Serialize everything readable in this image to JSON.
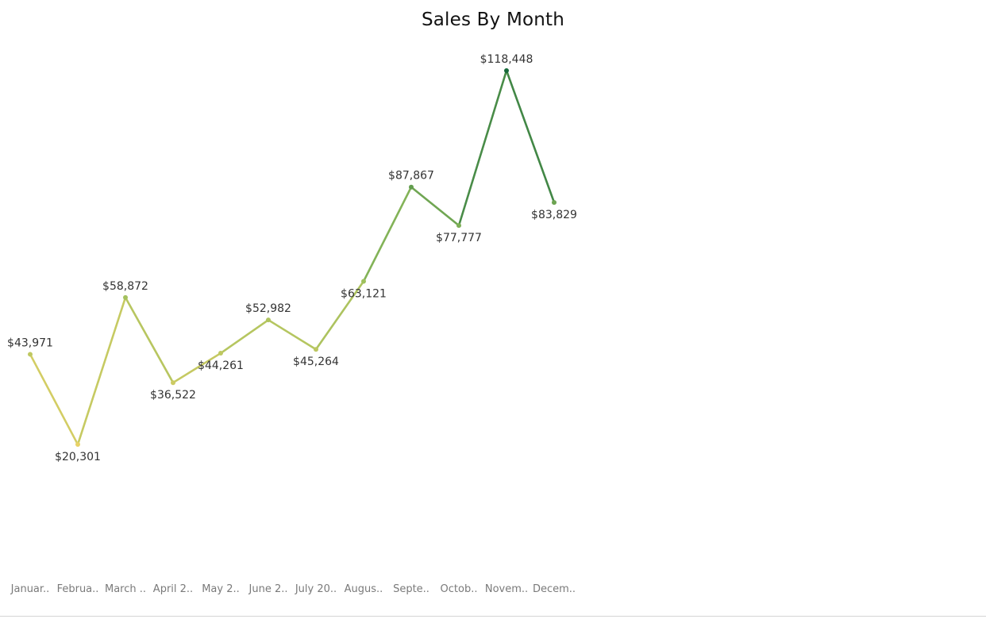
{
  "chart_data": {
    "type": "line",
    "title": "Sales By Month",
    "xlabel": "",
    "ylabel": "",
    "categories": [
      "Januar..",
      "Februa..",
      "March ..",
      "April 2..",
      "May 2..",
      "June 2..",
      "July 20..",
      "Augus..",
      "Septe..",
      "Octob..",
      "Novem..",
      "Decem.."
    ],
    "values": [
      43971,
      20301,
      58872,
      36522,
      44261,
      52982,
      45264,
      63121,
      87867,
      77777,
      118448,
      83829
    ],
    "data_labels": [
      "$43,971",
      "$20,301",
      "$58,872",
      "$36,522",
      "$44,261",
      "$52,982",
      "$45,264",
      "$63,121",
      "$87,867",
      "$77,777",
      "$118,448",
      "$83,829"
    ],
    "label_position": [
      "above",
      "below",
      "above",
      "below",
      "below",
      "above",
      "below",
      "below",
      "above",
      "below",
      "above",
      "below"
    ],
    "ylim": [
      0,
      125000
    ],
    "grid": false,
    "legend": "none",
    "color_scale": {
      "low": "#e8d266",
      "mid": "#92bd5c",
      "high": "#16693a"
    }
  }
}
